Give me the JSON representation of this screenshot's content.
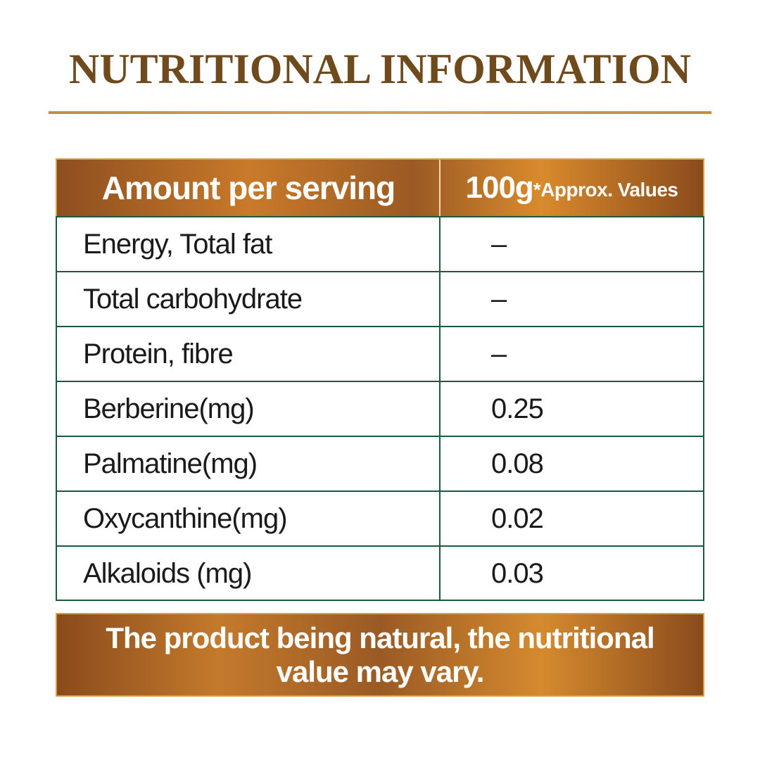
{
  "page": {
    "title": "NUTRITIONAL INFORMATION"
  },
  "table": {
    "header": {
      "left": "Amount per serving",
      "right_amount": "100g",
      "right_note": "*Approx. Values"
    },
    "rows": [
      {
        "name": "Energy, Total fat",
        "value": "–"
      },
      {
        "name": "Total carbohydrate",
        "value": "–"
      },
      {
        "name": "Protein, fibre",
        "value": "–"
      },
      {
        "name": "Berberine(mg)",
        "value": "0.25"
      },
      {
        "name": "Palmatine(mg)",
        "value": "0.08"
      },
      {
        "name": "Oxycanthine(mg)",
        "value": "0.02"
      },
      {
        "name": "Alkaloids (mg)",
        "value": "0.03"
      }
    ]
  },
  "footer": {
    "note": "The product being natural, the nutritional value may vary."
  },
  "colors": {
    "title": "#6e4a1d",
    "rule": "#d9a152",
    "header_brown": "#9a5a24",
    "header_orange": "#d98a2c",
    "table_border": "#1c5a3c"
  }
}
